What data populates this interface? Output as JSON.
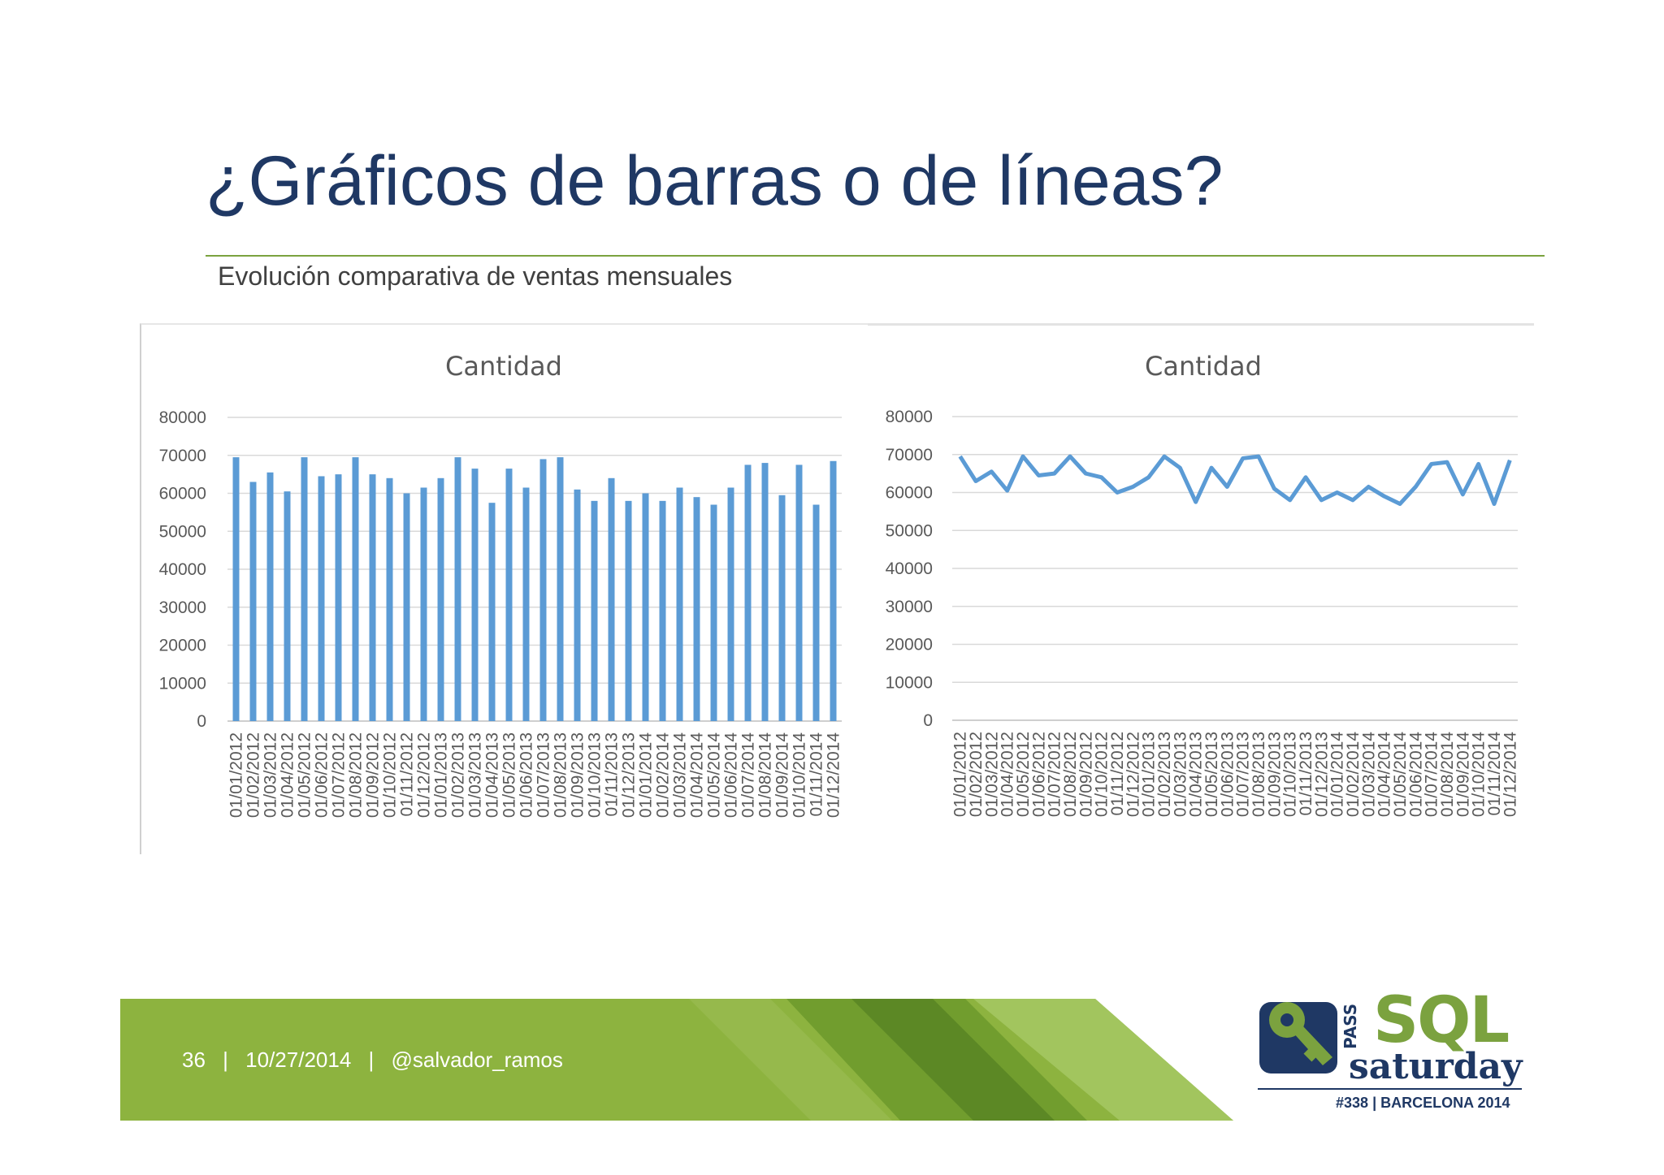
{
  "slide": {
    "title": "¿Gráficos de barras o de líneas?",
    "subtitle": "Evolución comparativa de ventas mensuales",
    "footer": {
      "page": "36",
      "date": "10/27/2014",
      "handle": "@salvador_ramos",
      "separator": "|"
    },
    "logo": {
      "pass": "PASS",
      "sql": "SQL",
      "saturday": "saturday",
      "event_number": "#338",
      "event_place": "BARCELONA 2014"
    }
  },
  "colors": {
    "title": "#1f3864",
    "accent_green": "#7ba23f",
    "series": "#5b9bd5",
    "gridline": "#d9d9d9"
  },
  "chart_data": [
    {
      "type": "bar",
      "title": "Cantidad",
      "ylim": [
        0,
        80000
      ],
      "yticks": [
        0,
        10000,
        20000,
        30000,
        40000,
        50000,
        60000,
        70000,
        80000
      ],
      "grid": true,
      "categories": [
        "01/01/2012",
        "01/02/2012",
        "01/03/2012",
        "01/04/2012",
        "01/05/2012",
        "01/06/2012",
        "01/07/2012",
        "01/08/2012",
        "01/09/2012",
        "01/10/2012",
        "01/11/2012",
        "01/12/2012",
        "01/01/2013",
        "01/02/2013",
        "01/03/2013",
        "01/04/2013",
        "01/05/2013",
        "01/06/2013",
        "01/07/2013",
        "01/08/2013",
        "01/09/2013",
        "01/10/2013",
        "01/11/2013",
        "01/12/2013",
        "01/01/2014",
        "01/02/2014",
        "01/03/2014",
        "01/04/2014",
        "01/05/2014",
        "01/06/2014",
        "01/07/2014",
        "01/08/2014",
        "01/09/2014",
        "01/10/2014",
        "01/11/2014",
        "01/12/2014"
      ],
      "values": [
        69500,
        63000,
        65500,
        60500,
        69500,
        64500,
        65000,
        69500,
        65000,
        64000,
        60000,
        61500,
        64000,
        69500,
        66500,
        57500,
        66500,
        61500,
        69000,
        69500,
        61000,
        58000,
        64000,
        58000,
        60000,
        58000,
        61500,
        59000,
        57000,
        61500,
        67500,
        68000,
        59500,
        67500,
        57000,
        68500
      ]
    },
    {
      "type": "line",
      "title": "Cantidad",
      "ylim": [
        0,
        80000
      ],
      "yticks": [
        0,
        10000,
        20000,
        30000,
        40000,
        50000,
        60000,
        70000,
        80000
      ],
      "grid": true,
      "categories": [
        "01/01/2012",
        "01/02/2012",
        "01/03/2012",
        "01/04/2012",
        "01/05/2012",
        "01/06/2012",
        "01/07/2012",
        "01/08/2012",
        "01/09/2012",
        "01/10/2012",
        "01/11/2012",
        "01/12/2012",
        "01/01/2013",
        "01/02/2013",
        "01/03/2013",
        "01/04/2013",
        "01/05/2013",
        "01/06/2013",
        "01/07/2013",
        "01/08/2013",
        "01/09/2013",
        "01/10/2013",
        "01/11/2013",
        "01/12/2013",
        "01/01/2014",
        "01/02/2014",
        "01/03/2014",
        "01/04/2014",
        "01/05/2014",
        "01/06/2014",
        "01/07/2014",
        "01/08/2014",
        "01/09/2014",
        "01/10/2014",
        "01/11/2014",
        "01/12/2014"
      ],
      "values": [
        69500,
        63000,
        65500,
        60500,
        69500,
        64500,
        65000,
        69500,
        65000,
        64000,
        60000,
        61500,
        64000,
        69500,
        66500,
        57500,
        66500,
        61500,
        69000,
        69500,
        61000,
        58000,
        64000,
        58000,
        60000,
        58000,
        61500,
        59000,
        57000,
        61500,
        67500,
        68000,
        59500,
        67500,
        57000,
        68500
      ]
    }
  ]
}
